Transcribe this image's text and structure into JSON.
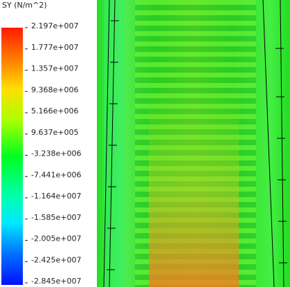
{
  "legend": {
    "title": "SY (N/m^2)",
    "labels": [
      "2.197e+007",
      "1.777e+007",
      "1.357e+007",
      "9.368e+006",
      "5.166e+006",
      "9.637e+005",
      "-3.238e+006",
      "-7.441e+006",
      "-1.164e+007",
      "-1.585e+007",
      "-2.005e+007",
      "-2.425e+007",
      "-2.845e+007"
    ]
  }
}
